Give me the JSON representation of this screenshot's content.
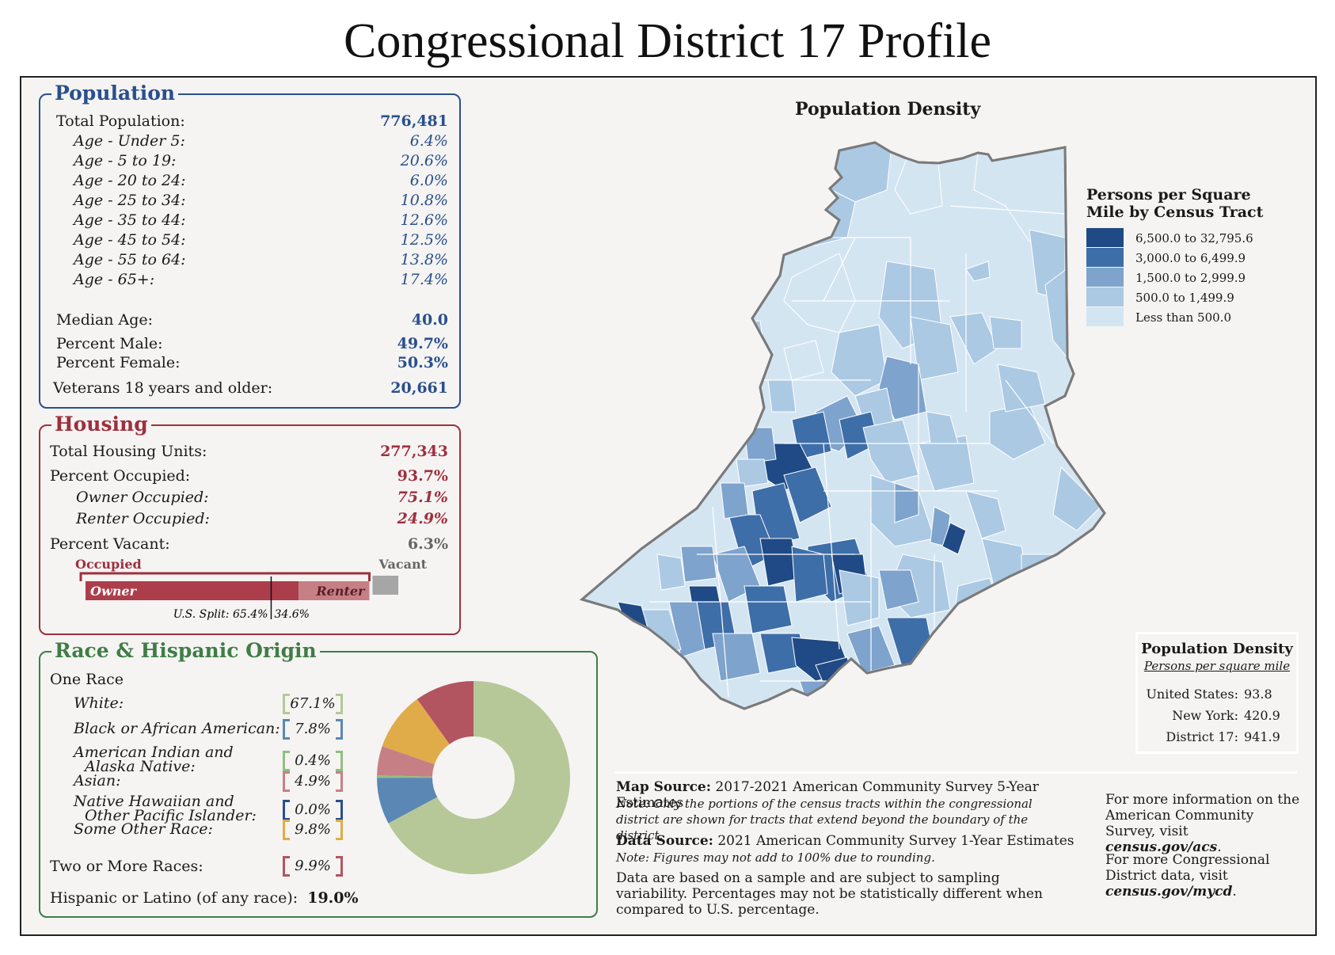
{
  "title": "Congressional District 17 Profile",
  "population": {
    "heading": "Population",
    "total_label": "Total Population:",
    "total_value": "776,481",
    "ages": [
      {
        "label": "Age - Under 5:",
        "value": "6.4%"
      },
      {
        "label": "Age - 5 to 19:",
        "value": "20.6%"
      },
      {
        "label": "Age - 20 to 24:",
        "value": "6.0%"
      },
      {
        "label": "Age - 25 to 34:",
        "value": "10.8%"
      },
      {
        "label": "Age - 35 to 44:",
        "value": "12.6%"
      },
      {
        "label": "Age - 45 to 54:",
        "value": "12.5%"
      },
      {
        "label": "Age - 55 to 64:",
        "value": "13.8%"
      },
      {
        "label": "Age - 65+:",
        "value": "17.4%"
      }
    ],
    "median_age_label": "Median Age:",
    "median_age_value": "40.0",
    "male_label": "Percent Male:",
    "male_value": "49.7%",
    "female_label": "Percent Female:",
    "female_value": "50.3%",
    "veterans_label": "Veterans 18 years and older:",
    "veterans_value": "20,661"
  },
  "housing": {
    "heading": "Housing",
    "total_label": "Total Housing Units:",
    "total_value": "277,343",
    "occupied_label": "Percent Occupied:",
    "occupied_value": "93.7%",
    "owner_label": "Owner Occupied:",
    "owner_value": "75.1%",
    "renter_label": "Renter Occupied:",
    "renter_value": "24.9%",
    "vacant_label": "Percent Vacant:",
    "vacant_value": "6.3%",
    "bar": {
      "occupied_label": "Occupied",
      "vacant_label": "Vacant",
      "owner_label": "Owner",
      "renter_label": "Renter",
      "us_split_label": "U.S. Split: 65.4%",
      "us_split_right": "34.6%",
      "occupied_fraction": 0.937,
      "owner_fraction": 0.751,
      "us_owner_fraction": 0.654
    }
  },
  "race": {
    "heading": "Race & Hispanic Origin",
    "one_race_label": "One Race",
    "items": [
      {
        "label": "White:",
        "value": "67.1%",
        "color": "#b6c897"
      },
      {
        "label": "Black or African American:",
        "value": "7.8%",
        "color": "#5b87b5"
      },
      {
        "label": "American Indian and",
        "label2": "Alaska Native:",
        "value": "0.4%",
        "color": "#8fbf80"
      },
      {
        "label": "Asian:",
        "value": "4.9%",
        "color": "#c77f86"
      },
      {
        "label": "Native Hawaiian and",
        "label2": "Other Pacific Islander:",
        "value": "0.0%",
        "color": "#2a4f8c"
      },
      {
        "label": "Some Other Race:",
        "value": "9.8%",
        "color": "#e0ac49"
      }
    ],
    "two_or_more_label": "Two or More Races:",
    "two_or_more_value": "9.9%",
    "two_or_more_color": "#b35560",
    "hispanic_label": "Hispanic or Latino (of any race):",
    "hispanic_value": "19.0%"
  },
  "chart_data": {
    "type": "pie",
    "categories": [
      "White",
      "Black or African American",
      "American Indian and Alaska Native",
      "Asian",
      "Native Hawaiian and Other Pacific Islander",
      "Some Other Race",
      "Two or More Races"
    ],
    "values": [
      67.1,
      7.8,
      0.4,
      4.9,
      0.0,
      9.8,
      9.9
    ],
    "colors": [
      "#b6c897",
      "#5b87b5",
      "#8fbf80",
      "#c77f86",
      "#2a4f8c",
      "#e0ac49",
      "#b35560"
    ]
  },
  "map": {
    "title": "Population Density",
    "legend_title_1": "Persons per Square",
    "legend_title_2": "Mile by Census Tract",
    "legend": [
      {
        "label": "6,500.0 to 32,795.6",
        "color": "#1f4a86"
      },
      {
        "label": "3,000.0 to 6,499.9",
        "color": "#3e6ea8"
      },
      {
        "label": "1,500.0 to 2,999.9",
        "color": "#7ea3cc"
      },
      {
        "label": "500.0 to 1,499.9",
        "color": "#abc9e3"
      },
      {
        "label": "Less than 500.0",
        "color": "#d4e5f2"
      }
    ]
  },
  "density_box": {
    "title": "Population Density",
    "subtitle": "Persons per square mile",
    "rows": [
      {
        "label": "United States:",
        "value": "93.8"
      },
      {
        "label": "New York:",
        "value": "420.9"
      },
      {
        "label": "District 17:",
        "value": "941.9"
      }
    ]
  },
  "sources": {
    "map_source_bold": "Map Source:",
    "map_source_text": "2017-2021 American Community Survey 5-Year Estimates",
    "map_note": "Note: Only the portions of the census tracts within the congressional district are shown for tracts that extend beyond the boundary of the district.",
    "data_source_bold": "Data Source:",
    "data_source_text": "2021 American Community Survey 1-Year Estimates",
    "data_note": "Note: Figures may not add to 100% due to rounding.",
    "sample_note": "Data are based on a sample and are subject to sampling variability. Percentages may not be statistically different when compared to U.S. percentage.",
    "more_info_1": "For more information on the American Community Survey, visit",
    "more_info_1_link": "census.gov/acs",
    "more_info_2": "For more Congressional District data, visit",
    "more_info_2_link": "census.gov/mycd"
  }
}
